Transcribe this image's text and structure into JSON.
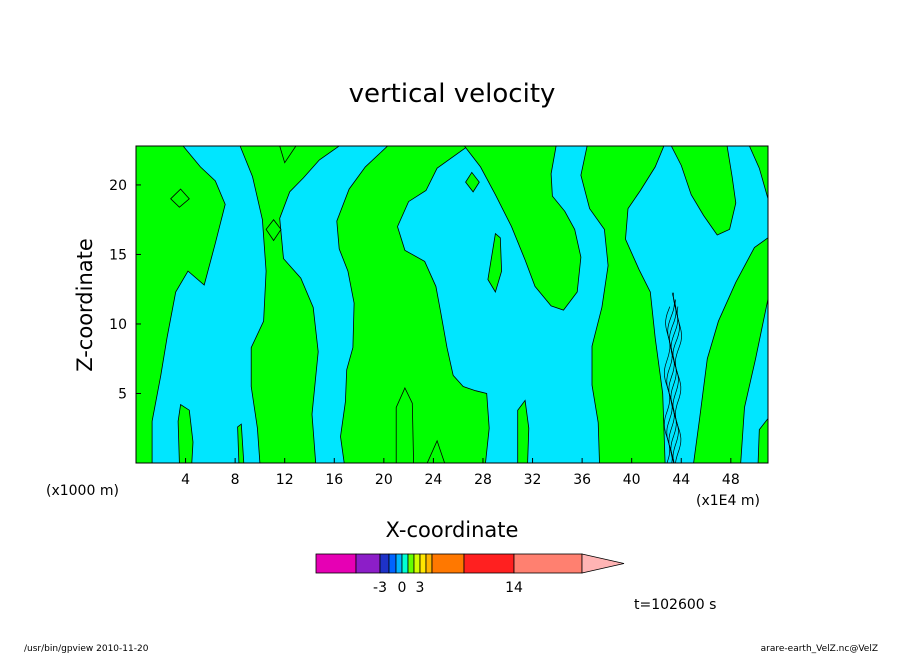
{
  "chart_data": {
    "type": "heatmap",
    "title": "vertical velocity",
    "xlabel": "X-coordinate",
    "ylabel": "Z-coordinate",
    "x_unit_left": "(x1000 m)",
    "x_unit_right": "(x1E4 m)",
    "xlim": [
      0,
      51
    ],
    "ylim": [
      0,
      22.8
    ],
    "x_ticks": [
      4,
      8,
      12,
      16,
      20,
      24,
      28,
      32,
      36,
      40,
      44,
      48
    ],
    "y_ticks": [
      5,
      10,
      15,
      20
    ],
    "colorbar": {
      "colors": [
        "#e600b4",
        "#8c1ec8",
        "#1e32c8",
        "#0064ff",
        "#00b4ff",
        "#00ffd2",
        "#64ff00",
        "#d2ff00",
        "#ffe600",
        "#ffb400",
        "#ff7800",
        "#ff2020",
        "#ff8070"
      ],
      "widths": [
        40,
        24,
        9,
        7,
        6,
        6,
        6,
        6,
        6,
        6,
        32,
        50,
        68
      ],
      "tick_labels": [
        {
          "text": "-3",
          "boundary": 2
        },
        {
          "text": "0",
          "boundary": 5
        },
        {
          "text": "3",
          "boundary": 8
        },
        {
          "text": "14",
          "boundary": 12
        }
      ],
      "extend_arrow_color": "#ffb4b4"
    },
    "field_colors": {
      "upward": "#00ff00",
      "downward": "#00e6ff"
    },
    "time_label": "t=102600 s"
  },
  "footer": {
    "left": "/usr/bin/gpview   2010-11-20",
    "right": "arare-earth_VelZ.nc@VelZ"
  }
}
